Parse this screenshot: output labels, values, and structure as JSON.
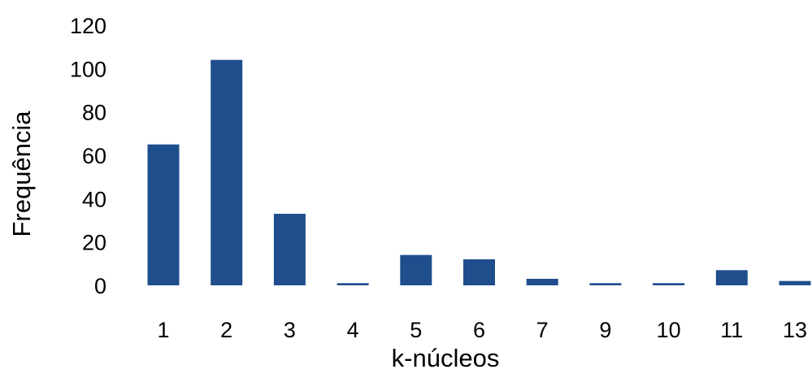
{
  "chart_data": {
    "type": "bar",
    "title": "",
    "xlabel": "k-núcleos",
    "ylabel": "Frequência",
    "categories": [
      "1",
      "2",
      "3",
      "4",
      "5",
      "6",
      "7",
      "9",
      "10",
      "11",
      "13"
    ],
    "values": [
      65,
      104,
      33,
      1,
      14,
      12,
      3,
      1,
      1,
      7,
      2
    ],
    "ylim": [
      0,
      120
    ],
    "yticks": [
      "0",
      "20",
      "40",
      "60",
      "80",
      "100",
      "120"
    ],
    "grid": false,
    "legend": "none",
    "bar_color": "#1f4e8c"
  }
}
